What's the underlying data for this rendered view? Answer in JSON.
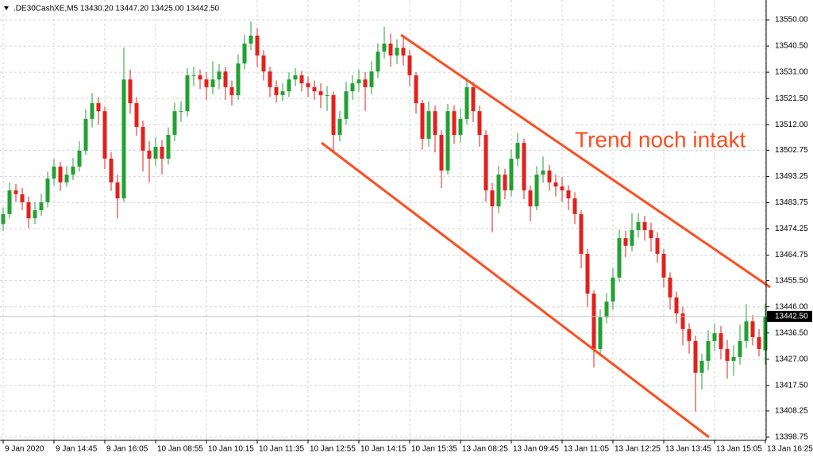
{
  "chart_data": {
    "type": "candlestick",
    "title": ".DE30CashXE,M5  13430.20 13447.20 13425.00 13442.50",
    "annotation": "Trend noch intakt",
    "categories": [
      "9 Jan 2020",
      null,
      null,
      null,
      null,
      null,
      null,
      null,
      "9 Jan 14:45",
      null,
      null,
      null,
      null,
      null,
      null,
      null,
      "9 Jan 16:05",
      null,
      null,
      null,
      null,
      null,
      null,
      null,
      "10 Jan 08:55",
      null,
      null,
      null,
      null,
      null,
      null,
      null,
      "10 Jan 10:15",
      null,
      null,
      null,
      null,
      null,
      null,
      null,
      "10 Jan 11:35",
      null,
      null,
      null,
      null,
      null,
      null,
      null,
      "10 Jan 12:55",
      null,
      null,
      null,
      null,
      null,
      null,
      null,
      "10 Jan 14:15",
      null,
      null,
      null,
      null,
      null,
      null,
      null,
      "10 Jan 15:35",
      null,
      null,
      null,
      null,
      null,
      null,
      null,
      "13 Jan 08:25",
      null,
      null,
      null,
      null,
      null,
      null,
      null,
      "13 Jan 09:45",
      null,
      null,
      null,
      null,
      null,
      null,
      null,
      "13 Jan 11:05",
      null,
      null,
      null,
      null,
      null,
      null,
      null,
      "13 Jan 12:25",
      null,
      null,
      null,
      null,
      null,
      null,
      null,
      "13 Jan 13:45",
      null,
      null,
      null,
      null,
      null,
      null,
      null,
      "13 Jan 15:05",
      null,
      null,
      null,
      null,
      null,
      null,
      null,
      "13 Jan 16:25"
    ],
    "open": [
      13476.0,
      13479.6,
      13488.2,
      13486.8,
      13483.9,
      13478.1,
      13481.0,
      13483.9,
      13492.5,
      13496.8,
      13491.1,
      13493.9,
      13496.8,
      13502.6,
      13514.1,
      13519.8,
      13516.9,
      13499.7,
      13491.1,
      13485.3,
      13528.4,
      13519.8,
      13511.2,
      13502.6,
      13499.7,
      13504.0,
      13499.7,
      13508.3,
      13516.9,
      13516.9,
      13529.9,
      13529.9,
      13528.4,
      13525.6,
      13528.4,
      13531.3,
      13525.6,
      13522.7,
      13534.2,
      13541.4,
      13544.3,
      13537.1,
      13531.3,
      13525.6,
      13522.7,
      13524.1,
      13528.4,
      13529.9,
      13527.0,
      13525.6,
      13524.1,
      13522.7,
      13522.7,
      13508.3,
      13514.1,
      13524.1,
      13527.0,
      13528.4,
      13525.6,
      13531.3,
      13538.5,
      13541.4,
      13537.1,
      13539.9,
      13537.1,
      13529.9,
      13519.8,
      13506.9,
      13516.9,
      13508.3,
      13495.4,
      13516.9,
      13508.3,
      13514.1,
      13525.6,
      13516.9,
      13508.3,
      13488.2,
      13482.4,
      13493.9,
      13488.2,
      13499.7,
      13505.4,
      13488.2,
      13482.4,
      13493.9,
      13495.4,
      13491.1,
      13489.6,
      13488.2,
      13485.3,
      13479.6,
      13465.2,
      13450.8,
      13430.7,
      13442.2,
      13447.9,
      13456.6,
      13470.9,
      13468.1,
      13473.8,
      13476.7,
      13473.8,
      13470.9,
      13465.2,
      13456.6,
      13449.4,
      13443.6,
      13437.9,
      13433.6,
      13422.1,
      13426.4,
      13433.6,
      13436.4,
      13430.7,
      13426.4,
      13427.8,
      13433.6,
      13440.7,
      13435.0,
      13430.2
    ],
    "high": [
      13482.0,
      13491.0,
      13490.5,
      13489.0,
      13486.0,
      13484.0,
      13487.0,
      13495.0,
      13499.5,
      13498.5,
      13497.0,
      13500.0,
      13506.0,
      13517.5,
      13523.5,
      13522.0,
      13518.5,
      13502.0,
      13494.0,
      13540.0,
      13532.0,
      13522.0,
      13513.5,
      13506.0,
      13507.5,
      13506.5,
      13511.0,
      13520.0,
      13520.5,
      13532.5,
      13533.0,
      13532.0,
      13531.0,
      13535.0,
      13534.0,
      13533.0,
      13528.0,
      13537.5,
      13544.5,
      13549.5,
      13547.0,
      13539.0,
      13533.0,
      13528.0,
      13527.0,
      13531.0,
      13532.5,
      13531.5,
      13529.5,
      13528.0,
      13527.0,
      13526.0,
      13524.0,
      13517.0,
      13527.5,
      13530.0,
      13532.0,
      13531.0,
      13535.0,
      13541.5,
      13547.5,
      13545.0,
      13543.0,
      13543.5,
      13539.0,
      13531.0,
      13521.0,
      13520.5,
      13519.0,
      13510.0,
      13519.5,
      13519.0,
      13518.0,
      13529.0,
      13527.5,
      13519.0,
      13510.0,
      13491.0,
      13497.0,
      13496.0,
      13503.0,
      13509.0,
      13507.0,
      13490.0,
      13497.0,
      13500.5,
      13497.5,
      13494.0,
      13493.0,
      13490.0,
      13487.5,
      13481.0,
      13467.0,
      13452.0,
      13445.0,
      13451.0,
      13460.0,
      13474.0,
      13473.5,
      13480.0,
      13480.0,
      13479.0,
      13476.5,
      13473.0,
      13467.0,
      13458.5,
      13451.5,
      13446.0,
      13440.0,
      13435.5,
      13429.0,
      13437.5,
      13440.0,
      13439.0,
      13434.0,
      13432.0,
      13439.5,
      13447.0,
      13443.0,
      13438.0,
      13447.2
    ],
    "low": [
      13473.5,
      13478.0,
      13484.0,
      13481.0,
      13474.5,
      13476.0,
      13479.0,
      13482.0,
      13490.0,
      13488.0,
      13489.5,
      13492.0,
      13495.0,
      13501.0,
      13511.0,
      13512.0,
      13496.0,
      13488.0,
      13478.0,
      13484.0,
      13516.0,
      13508.0,
      13495.0,
      13491.0,
      13497.0,
      13494.0,
      13497.5,
      13506.0,
      13513.0,
      13515.0,
      13526.0,
      13525.0,
      13521.0,
      13523.0,
      13525.0,
      13521.0,
      13519.0,
      13521.0,
      13532.0,
      13539.0,
      13533.0,
      13528.0,
      13522.0,
      13520.0,
      13520.5,
      13522.0,
      13526.0,
      13524.0,
      13522.0,
      13521.0,
      13518.0,
      13517.0,
      13502.0,
      13506.0,
      13512.0,
      13521.0,
      13524.0,
      13517.0,
      13523.0,
      13529.0,
      13536.0,
      13533.0,
      13534.0,
      13533.5,
      13526.0,
      13516.0,
      13503.0,
      13504.0,
      13502.0,
      13489.0,
      13494.0,
      13505.0,
      13505.5,
      13512.0,
      13513.0,
      13504.0,
      13484.0,
      13473.0,
      13480.0,
      13485.0,
      13486.0,
      13497.0,
      13485.0,
      13477.0,
      13481.0,
      13491.0,
      13488.0,
      13486.0,
      13484.0,
      13481.0,
      13476.0,
      13460.0,
      13446.0,
      13424.0,
      13428.0,
      13440.0,
      13445.0,
      13455.0,
      13464.0,
      13466.0,
      13471.0,
      13470.0,
      13466.0,
      13462.0,
      13453.0,
      13445.0,
      13440.0,
      13432.0,
      13429.0,
      13408.0,
      13416.0,
      13423.0,
      13430.0,
      13427.0,
      13420.0,
      13421.0,
      13425.0,
      13431.0,
      13432.0,
      13428.0,
      13425.0
    ],
    "close": [
      13479.6,
      13488.2,
      13486.8,
      13483.9,
      13478.1,
      13481.0,
      13483.9,
      13492.5,
      13496.8,
      13491.1,
      13493.9,
      13496.8,
      13502.6,
      13514.1,
      13519.8,
      13516.9,
      13499.7,
      13491.1,
      13485.3,
      13528.4,
      13519.8,
      13511.2,
      13502.6,
      13499.7,
      13504.0,
      13499.7,
      13508.3,
      13516.9,
      13516.9,
      13529.9,
      13529.9,
      13528.4,
      13525.6,
      13528.4,
      13531.3,
      13525.6,
      13522.7,
      13534.2,
      13541.4,
      13544.3,
      13537.1,
      13531.3,
      13525.6,
      13522.7,
      13524.1,
      13528.4,
      13529.9,
      13527.0,
      13525.6,
      13524.1,
      13522.7,
      13522.7,
      13508.3,
      13514.1,
      13524.1,
      13527.0,
      13528.4,
      13525.6,
      13531.3,
      13538.5,
      13541.4,
      13537.1,
      13539.9,
      13537.1,
      13529.9,
      13519.8,
      13506.9,
      13516.9,
      13508.3,
      13495.4,
      13516.9,
      13508.3,
      13514.1,
      13525.6,
      13516.9,
      13508.3,
      13488.2,
      13482.4,
      13493.9,
      13488.2,
      13499.7,
      13505.4,
      13488.2,
      13482.4,
      13493.9,
      13495.4,
      13491.1,
      13489.6,
      13488.2,
      13485.3,
      13479.6,
      13465.2,
      13450.8,
      13430.7,
      13442.2,
      13447.9,
      13456.6,
      13470.9,
      13468.1,
      13473.8,
      13476.7,
      13473.8,
      13470.9,
      13465.2,
      13456.6,
      13449.4,
      13443.6,
      13437.9,
      13433.6,
      13422.1,
      13426.4,
      13433.6,
      13436.4,
      13430.7,
      13426.4,
      13427.8,
      13433.6,
      13440.7,
      13435.0,
      13430.7,
      13442.5
    ],
    "up_color": "#22a132",
    "down_color": "#e3201b",
    "ylim": [
      13397.6,
      13557.2
    ],
    "yticks": [
      {
        "value": 13550,
        "label": "13550.00"
      },
      {
        "value": 13540.5,
        "label": "13540.50"
      },
      {
        "value": 13531,
        "label": "13531.00"
      },
      {
        "value": 13521.5,
        "label": "13521.50"
      },
      {
        "value": 13512,
        "label": "13512.00"
      },
      {
        "value": 13502.75,
        "label": "13502.75"
      },
      {
        "value": 13493.25,
        "label": "13493.25"
      },
      {
        "value": 13483.75,
        "label": "13483.75"
      },
      {
        "value": 13474.25,
        "label": "13474.25"
      },
      {
        "value": 13464.75,
        "label": "13464.75"
      },
      {
        "value": 13455.5,
        "label": "13455.50"
      },
      {
        "value": 13446,
        "label": "13446.00"
      },
      {
        "value": 13436.5,
        "label": "13436.50"
      },
      {
        "value": 13427,
        "label": "13427.00"
      },
      {
        "value": 13417.5,
        "label": "13417.50"
      },
      {
        "value": 13408.25,
        "label": "13408.25"
      },
      {
        "value": 13398.75,
        "label": "13398.75"
      }
    ],
    "current_price": {
      "value": 13442.5,
      "label": "13442.50"
    },
    "grid": true
  }
}
